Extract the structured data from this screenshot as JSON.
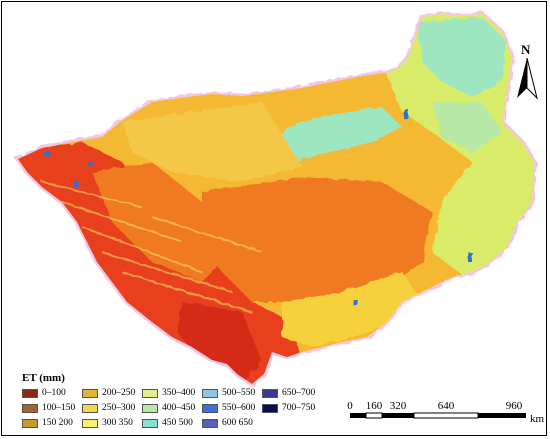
{
  "map": {
    "north_label": "N",
    "legend_title": "ET (mm)",
    "legend": [
      {
        "label": "0–100",
        "color": "#8b2a14"
      },
      {
        "label": "100–150",
        "color": "#a8612a"
      },
      {
        "label": "150  200",
        "color": "#c69a2c"
      },
      {
        "label": "200–250",
        "color": "#e2b43a"
      },
      {
        "label": "250–300",
        "color": "#f0d84a"
      },
      {
        "label": "300  350",
        "color": "#f6f26e"
      },
      {
        "label": "350–400",
        "color": "#dcf08c"
      },
      {
        "label": "400–450",
        "color": "#b8e8a6"
      },
      {
        "label": "450  500",
        "color": "#88e0d4"
      },
      {
        "label": "500–550",
        "color": "#8ec3ee"
      },
      {
        "label": "550–600",
        "color": "#3d6fd8"
      },
      {
        "label": "600  650",
        "color": "#5660b8"
      },
      {
        "label": "650–700",
        "color": "#383890"
      },
      {
        "label": "700–750",
        "color": "#0a0a5a"
      }
    ],
    "scale_labels": [
      "0",
      "160",
      "320",
      "640",
      "960"
    ],
    "scale_unit": "km",
    "region_colors": {
      "west_red": "#e8401e",
      "orange": "#f07a20",
      "light_orange": "#f5a030",
      "yellow": "#f5d23a",
      "yellow_green": "#d8ec6a",
      "cyan_green": "#9ee6c0",
      "blue": "#2e6fd6",
      "pink_halo": "#f4c6e6"
    }
  }
}
